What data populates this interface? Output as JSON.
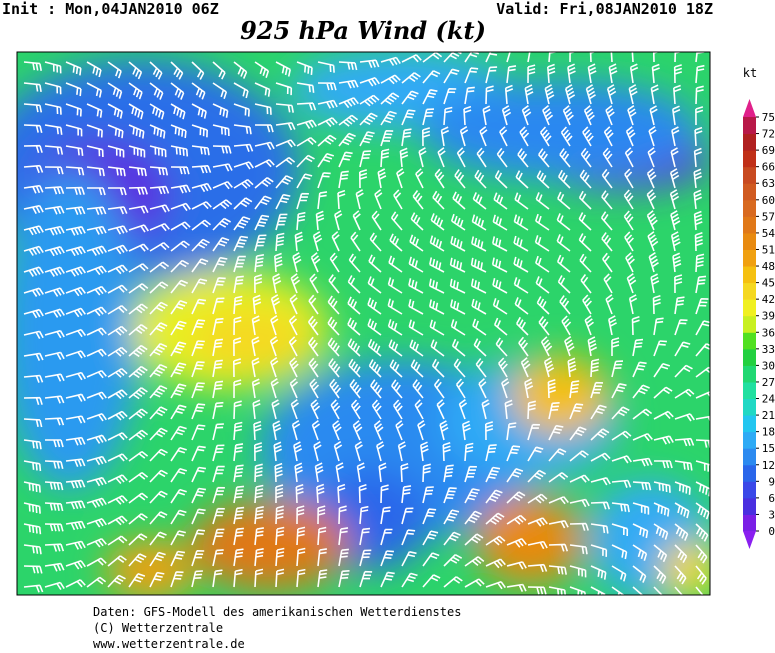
{
  "header": {
    "init": "Init : Mon,04JAN2010 06Z",
    "valid": "Valid: Fri,08JAN2010 18Z",
    "title": "925 hPa Wind (kt)"
  },
  "colorbar": {
    "unit": "kt",
    "levels": [
      0,
      3,
      6,
      9,
      12,
      15,
      18,
      21,
      24,
      27,
      30,
      33,
      36,
      39,
      42,
      45,
      48,
      51,
      54,
      57,
      60,
      63,
      66,
      69,
      72,
      75
    ],
    "colors": [
      "#7a1fe6",
      "#4a2fe0",
      "#3a48e8",
      "#2a66ea",
      "#2c8af0",
      "#2eaaf5",
      "#22c6f0",
      "#20d8c4",
      "#20e0a0",
      "#20d872",
      "#22d040",
      "#50e020",
      "#c8f020",
      "#f0f020",
      "#f5d820",
      "#f5c010",
      "#f0a010",
      "#e88a10",
      "#e07818",
      "#d86a20",
      "#d05a20",
      "#c84a20",
      "#c03018",
      "#b02020",
      "#b81848"
    ],
    "top_color": "#e0208a",
    "bottom_color": "#8a1ff0"
  },
  "footer": {
    "lines": [
      "Daten: GFS-Modell des amerikanischen Wetterdienstes",
      "(C) Wetterzentrale",
      "www.wetterzentrale.de"
    ]
  }
}
